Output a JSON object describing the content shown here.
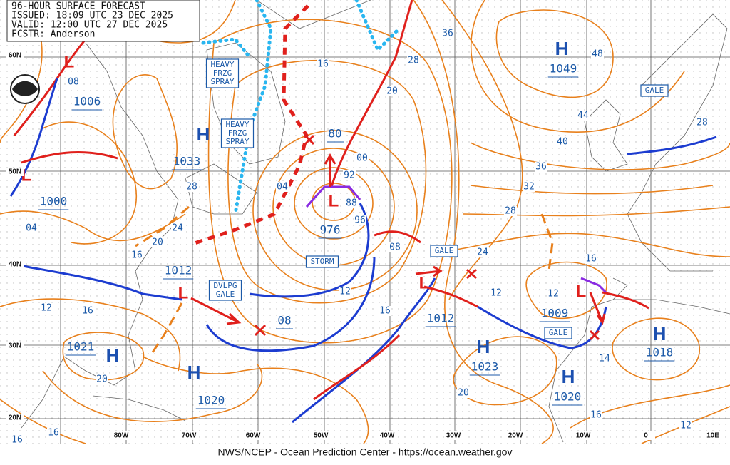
{
  "header": {
    "lines": [
      "96-HOUR SURFACE FORECAST",
      "ISSUED: 18:09 UTC 23 DEC 2025",
      "VALID: 12:00 UTC 27 DEC 2025",
      "FCSTR: Anderson"
    ]
  },
  "pressure_centers": [
    {
      "symbol": "L",
      "value": "1006"
    },
    {
      "symbol": "H",
      "value": "1033"
    },
    {
      "symbol": "L",
      "value": "1000"
    },
    {
      "symbol": "L",
      "value": "976"
    },
    {
      "symbol": "H",
      "value": "1049"
    },
    {
      "symbol": "L",
      "value": "1012"
    },
    {
      "symbol": "L",
      "value": "1009"
    },
    {
      "symbol": "L",
      "value": "1012"
    },
    {
      "symbol": "H",
      "value": "1021"
    },
    {
      "symbol": "H",
      "value": "1020"
    },
    {
      "symbol": "H",
      "value": "1023"
    },
    {
      "symbol": "H",
      "value": "1020"
    },
    {
      "symbol": "H",
      "value": "1018"
    }
  ],
  "forecast_positions": [
    "80",
    "08"
  ],
  "isobar_labels": [
    "16",
    "28",
    "36",
    "48",
    "20",
    "44",
    "28",
    "40",
    "00",
    "36",
    "92",
    "32",
    "04",
    "28",
    "88",
    "28",
    "96",
    "04",
    "24",
    "20",
    "16",
    "08",
    "24",
    "16",
    "12",
    "12",
    "12",
    "16",
    "12",
    "16",
    "20",
    "20",
    "14",
    "16",
    "12",
    "16",
    "16",
    "08"
  ],
  "warnings": [
    {
      "lines": [
        "GALE"
      ]
    },
    {
      "lines": [
        "HEAVY",
        "FRZG",
        "SPRAY"
      ]
    },
    {
      "lines": [
        "HEAVY",
        "FRZG",
        "SPRAY"
      ]
    },
    {
      "lines": [
        "STORM"
      ]
    },
    {
      "lines": [
        "GALE"
      ]
    },
    {
      "lines": [
        "DVLPG",
        "GALE"
      ]
    },
    {
      "lines": [
        "GALE"
      ]
    }
  ],
  "latitude_labels": [
    "60N",
    "50N",
    "40N",
    "30N",
    "20N"
  ],
  "longitude_labels": [
    "80W",
    "70W",
    "60W",
    "50W",
    "40W",
    "30W",
    "20W",
    "10W",
    "0",
    "10E"
  ],
  "footer": "NWS/NCEP - Ocean Prediction Center - https://ocean.weather.gov"
}
